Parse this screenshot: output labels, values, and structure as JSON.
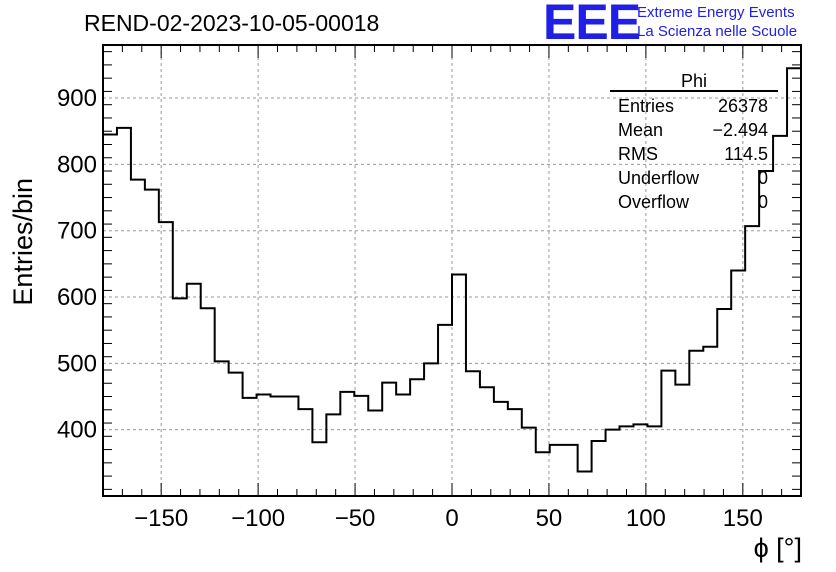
{
  "header": {
    "title": "REND-02-2023-10-05-00018",
    "logo_mark": "EEE",
    "logo_line1": "Extreme Energy Events",
    "logo_line2": "La Scienza nelle Scuole"
  },
  "stats": {
    "name": "Phi",
    "rows": [
      {
        "key": "Entries",
        "value": "26378"
      },
      {
        "key": "Mean",
        "value": "−2.494"
      },
      {
        "key": "RMS",
        "value": "114.5"
      },
      {
        "key": "Underflow",
        "value": "0"
      },
      {
        "key": "Overflow",
        "value": "0"
      }
    ]
  },
  "colors": {
    "histogram": "#000000",
    "grid": "#999999",
    "logo": "#1f1fe6"
  },
  "chart_data": {
    "type": "bar",
    "style": "step-histogram",
    "xlabel": "ϕ [°]",
    "ylabel": "Entries/bin",
    "xlim": [
      -180,
      180
    ],
    "ylim": [
      300,
      980
    ],
    "grid": true,
    "bin_width": 7.2,
    "xticks": [
      -150,
      -100,
      -50,
      0,
      50,
      100,
      150
    ],
    "xtick_labels": [
      "−150",
      "−100",
      "−50",
      "0",
      "50",
      "100",
      "150"
    ],
    "yticks": [
      400,
      500,
      600,
      700,
      800,
      900
    ],
    "ytick_labels": [
      "400",
      "500",
      "600",
      "700",
      "800",
      "900"
    ],
    "values": [
      845,
      855,
      777,
      762,
      713,
      598,
      620,
      583,
      503,
      486,
      448,
      453,
      450,
      450,
      431,
      381,
      423,
      457,
      451,
      429,
      471,
      453,
      476,
      500,
      558,
      634,
      488,
      464,
      442,
      431,
      403,
      366,
      377,
      377,
      337,
      383,
      400,
      405,
      408,
      405,
      489,
      468,
      519,
      525,
      582,
      640,
      707,
      790,
      843,
      945
    ]
  }
}
